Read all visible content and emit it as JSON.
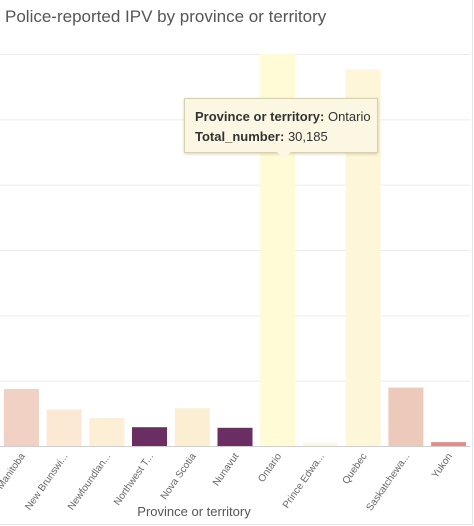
{
  "chart_data": {
    "type": "bar",
    "title": "Police-reported IPV by province or territory",
    "xlabel": "Province or territory",
    "ylabel": "",
    "categories": [
      "Manitoba",
      "New Brunswi...",
      "Newfoundlan...",
      "Northwest T...",
      "Nova Scotia",
      "Nunavut",
      "Ontario",
      "Prince Edwa...",
      "Quebec",
      "Saskatchewa...",
      "Yukon"
    ],
    "values": [
      4400,
      2800,
      2150,
      1450,
      2900,
      1400,
      30185,
      250,
      29000,
      4500,
      300
    ],
    "colors": [
      "#f2d1c5",
      "#fbe9d4",
      "#fcefd6",
      "#6b2e63",
      "#fbeed3",
      "#6b2e63",
      "#fffbd6",
      "#fdf8df",
      "#fdf6d9",
      "#ecc9ba",
      "#df8e8c"
    ],
    "ylim": [
      0,
      30185
    ],
    "grid": true,
    "highlighted_category": "Ontario"
  },
  "tooltip": {
    "field1_label": "Province or territory:",
    "field1_value": "Ontario",
    "field2_label": "Total_number:",
    "field2_value": "30,185"
  }
}
